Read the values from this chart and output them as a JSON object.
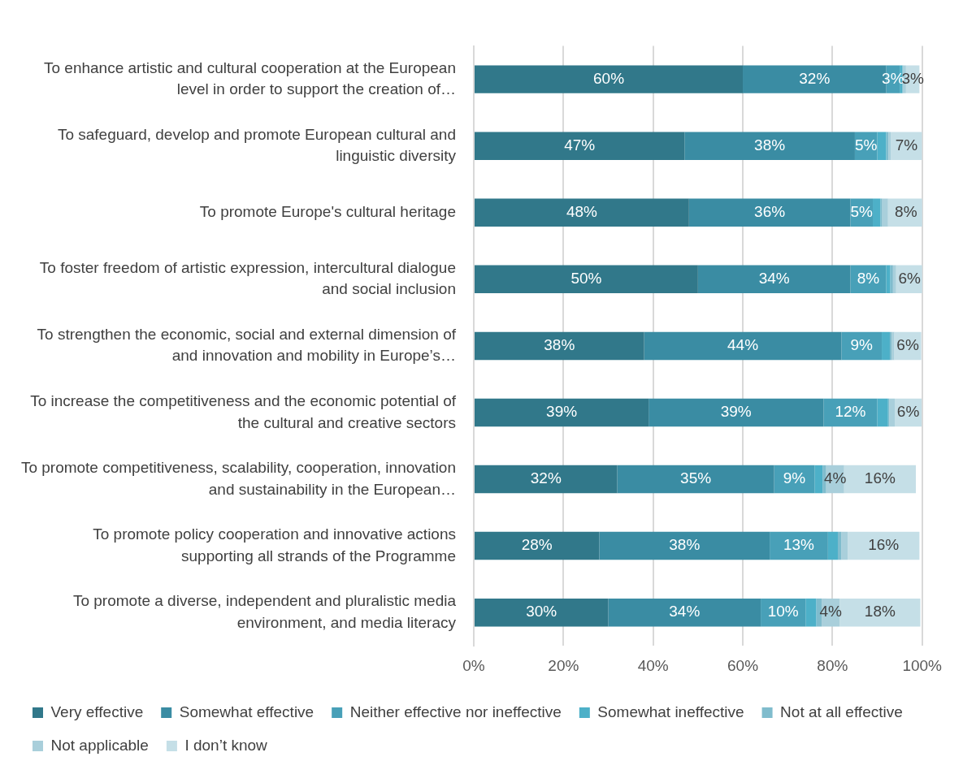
{
  "chart_data": {
    "type": "bar",
    "orientation": "horizontal",
    "stacked": true,
    "legend": "bottom",
    "grid": "x",
    "categories": [
      "To enhance artistic and cultural cooperation at the European level in order to support the creation of…",
      "To safeguard, develop and promote European cultural and linguistic diversity",
      "To promote Europe's cultural heritage",
      "To foster freedom of artistic expression, intercultural dialogue and social inclusion",
      "To strengthen the economic, social and external dimension of and innovation and mobility in Europe’s…",
      "To increase the competitiveness and the economic potential of the cultural and creative sectors",
      "To promote competitiveness, scalability, cooperation, innovation and sustainability in the European…",
      "To promote policy cooperation and innovative actions supporting all strands of the Programme",
      "To promote a diverse, independent and pluralistic media environment, and media literacy"
    ],
    "xlim": [
      0,
      100
    ],
    "xticks": [
      {
        "value": 0,
        "label": "0%"
      },
      {
        "value": 20,
        "label": "20%"
      },
      {
        "value": 40,
        "label": "40%"
      },
      {
        "value": 60,
        "label": "60%"
      },
      {
        "value": 80,
        "label": "80%"
      },
      {
        "value": 100,
        "label": "100%"
      }
    ],
    "series": [
      {
        "name": "Very effective",
        "color": "#31788a",
        "values": [
          60,
          47,
          48,
          50,
          38,
          39,
          32,
          28,
          30
        ],
        "value_labels": [
          "60%",
          "47%",
          "48%",
          "50%",
          "38%",
          "39%",
          "32%",
          "28%",
          "30%"
        ]
      },
      {
        "name": "Somewhat effective",
        "color": "#3a8ca3",
        "values": [
          32,
          38,
          36,
          34,
          44,
          39,
          35,
          38,
          34
        ],
        "value_labels": [
          "32%",
          "38%",
          "36%",
          "34%",
          "44%",
          "39%",
          "35%",
          "38%",
          "34%"
        ]
      },
      {
        "name": "Neither effective nor ineffective",
        "color": "#48a0b8",
        "values": [
          3,
          5,
          5,
          8,
          9,
          12,
          9,
          13,
          10
        ],
        "value_labels": [
          "3%",
          "5%",
          "5%",
          "8%",
          "9%",
          "12%",
          "9%",
          "13%",
          "10%"
        ]
      },
      {
        "name": "Somewhat ineffective",
        "color": "#4db0c8",
        "values": [
          0.6,
          2,
          1.7,
          0.9,
          1.8,
          2.4,
          1.8,
          2.2,
          2.4
        ],
        "value_labels": [
          null,
          null,
          null,
          null,
          null,
          null,
          null,
          null,
          null
        ]
      },
      {
        "name": "Not at all effective",
        "color": "#80bccd",
        "values": [
          0.2,
          0.5,
          0.4,
          0.6,
          0.4,
          0.3,
          0.8,
          0.8,
          1.2
        ],
        "value_labels": [
          null,
          null,
          null,
          null,
          null,
          null,
          null,
          null,
          null
        ]
      },
      {
        "name": "Not applicable",
        "color": "#a9cfdb",
        "values": [
          0.6,
          0.5,
          1.3,
          0.7,
          0.6,
          1.2,
          4,
          1.4,
          4
        ],
        "value_labels": [
          null,
          null,
          null,
          null,
          null,
          null,
          "4%",
          null,
          "4%"
        ]
      },
      {
        "name": "I don’t know",
        "color": "#c5dfe7",
        "values": [
          3,
          7,
          8,
          6,
          6,
          6,
          16,
          16,
          18
        ],
        "value_labels": [
          "3%",
          "7%",
          "8%",
          "6%",
          "6%",
          "6%",
          "16%",
          "16%",
          "18%"
        ]
      }
    ]
  }
}
